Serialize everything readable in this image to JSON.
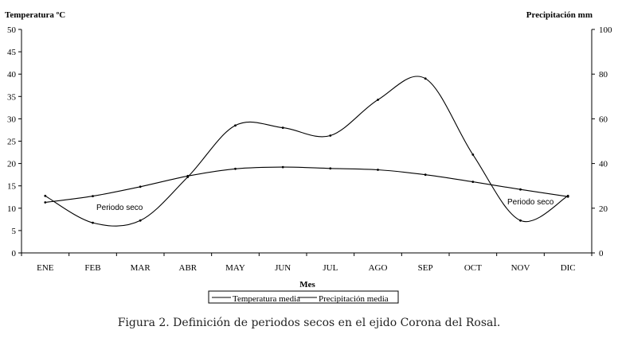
{
  "chart_data": {
    "type": "line",
    "categories": [
      "ENE",
      "FEB",
      "MAR",
      "ABR",
      "MAY",
      "JUN",
      "JUL",
      "AGO",
      "SEP",
      "OCT",
      "NOV",
      "DIC"
    ],
    "xlabel": "Mes",
    "ylabel_left": "Temperatura ºC",
    "ylabel_right": "Precipitación mm",
    "ylim_left": [
      0,
      50
    ],
    "ylim_right": [
      0,
      100
    ],
    "yticks_left": [
      "0",
      "5",
      "10",
      "15",
      "20",
      "25",
      "30",
      "35",
      "40",
      "45",
      "50"
    ],
    "yticks_right": [
      "0",
      "20",
      "40",
      "60",
      "80",
      "100"
    ],
    "grid": false,
    "legend_position": "bottom",
    "series": [
      {
        "name": "Temperatura media",
        "axis": "left",
        "values": [
          11.3,
          12.7,
          14.8,
          17.2,
          18.8,
          19.2,
          18.9,
          18.6,
          17.5,
          15.9,
          14.2,
          12.6
        ]
      },
      {
        "name": "Precipitación media",
        "axis": "right",
        "values": [
          25.5,
          13.5,
          14.5,
          34.0,
          57.0,
          56.0,
          52.5,
          68.5,
          78.0,
          44.0,
          14.5,
          25.5
        ]
      }
    ],
    "annotations": [
      "Periodo seco",
      "Periodo seco"
    ]
  },
  "caption": "Figura 2. Definición de periodos secos en el ejido Corona del Rosal."
}
